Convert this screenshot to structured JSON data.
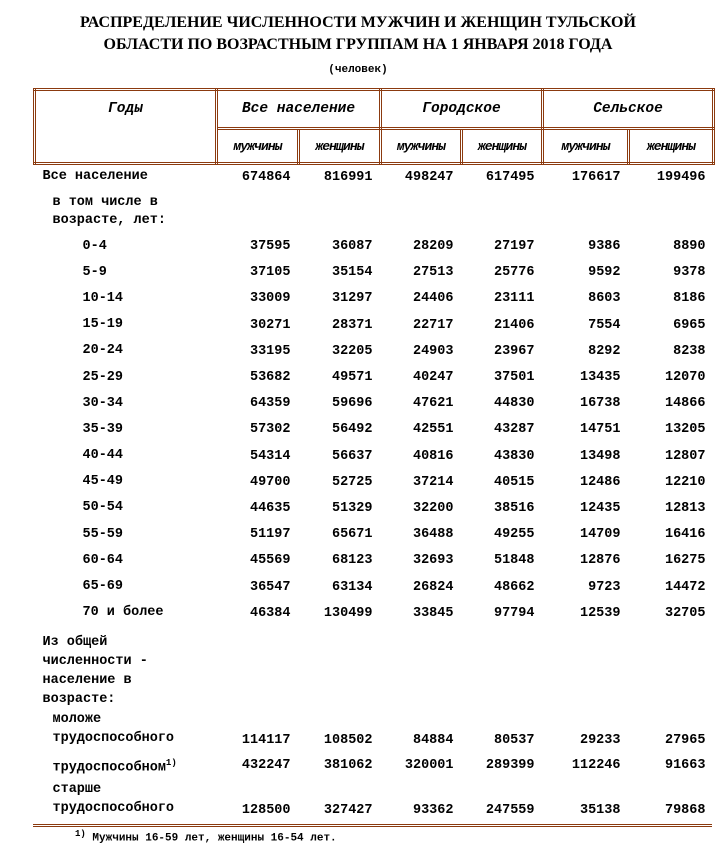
{
  "title_line1": "РАСПРЕДЕЛЕНИЕ ЧИСЛЕННОСТИ МУЖЧИН И ЖЕНЩИН ТУЛЬСКОЙ",
  "title_line2": "ОБЛАСТИ ПО  ВОЗРАСТНЫМ ГРУППАМ НА 1 ЯНВАРЯ 2018 ГОДА",
  "unit": "(человек)",
  "colors": {
    "border": "#8b3a0f"
  },
  "header": {
    "years": "Годы",
    "groups": [
      "Все население",
      "Городское",
      "Сельское"
    ],
    "sub": [
      "мужчины",
      "женщины",
      "мужчины",
      "женщины",
      "мужчины",
      "женщины"
    ]
  },
  "total": {
    "label": "Все население",
    "values": [
      "674864",
      "816991",
      "498247",
      "617495",
      "176617",
      "199496"
    ]
  },
  "including_label": [
    "в том числе в",
    "возрасте, лет:"
  ],
  "ages": [
    {
      "label": "0-4",
      "values": [
        "37595",
        "36087",
        "28209",
        "27197",
        "9386",
        "8890"
      ]
    },
    {
      "label": "5-9",
      "values": [
        "37105",
        "35154",
        "27513",
        "25776",
        "9592",
        "9378"
      ]
    },
    {
      "label": "10-14",
      "values": [
        "33009",
        "31297",
        "24406",
        "23111",
        "8603",
        "8186"
      ]
    },
    {
      "label": "15-19",
      "values": [
        "30271",
        "28371",
        "22717",
        "21406",
        "7554",
        "6965"
      ]
    },
    {
      "label": "20-24",
      "values": [
        "33195",
        "32205",
        "24903",
        "23967",
        "8292",
        "8238"
      ]
    },
    {
      "label": "25-29",
      "values": [
        "53682",
        "49571",
        "40247",
        "37501",
        "13435",
        "12070"
      ]
    },
    {
      "label": "30-34",
      "values": [
        "64359",
        "59696",
        "47621",
        "44830",
        "16738",
        "14866"
      ]
    },
    {
      "label": "35-39",
      "values": [
        "57302",
        "56492",
        "42551",
        "43287",
        "14751",
        "13205"
      ]
    },
    {
      "label": "40-44",
      "values": [
        "54314",
        "56637",
        "40816",
        "43830",
        "13498",
        "12807"
      ]
    },
    {
      "label": "45-49",
      "values": [
        "49700",
        "52725",
        "37214",
        "40515",
        "12486",
        "12210"
      ]
    },
    {
      "label": "50-54",
      "values": [
        "44635",
        "51329",
        "32200",
        "38516",
        "12435",
        "12813"
      ]
    },
    {
      "label": "55-59",
      "values": [
        "51197",
        "65671",
        "36488",
        "49255",
        "14709",
        "16416"
      ]
    },
    {
      "label": "60-64",
      "values": [
        "45569",
        "68123",
        "32693",
        "51848",
        "12876",
        "16275"
      ]
    },
    {
      "label": "65-69",
      "values": [
        "36547",
        "63134",
        "26824",
        "48662",
        "9723",
        "14472"
      ]
    },
    {
      "label": "70 и более",
      "values": [
        "46384",
        "130499",
        "33845",
        "97794",
        "12539",
        "32705"
      ]
    }
  ],
  "of_total_label": [
    "Из общей",
    "численности -",
    "население в",
    "возрасте:"
  ],
  "working": [
    {
      "label": [
        "моложе",
        "трудоспособного"
      ],
      "values": [
        "114117",
        "108502",
        "84884",
        "80537",
        "29233",
        "27965"
      ]
    },
    {
      "label": [
        "трудоспособном"
      ],
      "sup": "1)",
      "values": [
        "432247",
        "381062",
        "320001",
        "289399",
        "112246",
        "91663"
      ]
    },
    {
      "label": [
        "старше",
        "трудоспособного"
      ],
      "values": [
        "128500",
        "327427",
        "93362",
        "247559",
        "35138",
        "79868"
      ]
    }
  ],
  "footnote": {
    "mark": "1)",
    "text": " Мужчины 16-59 лет, женщины 16-54 лет."
  }
}
